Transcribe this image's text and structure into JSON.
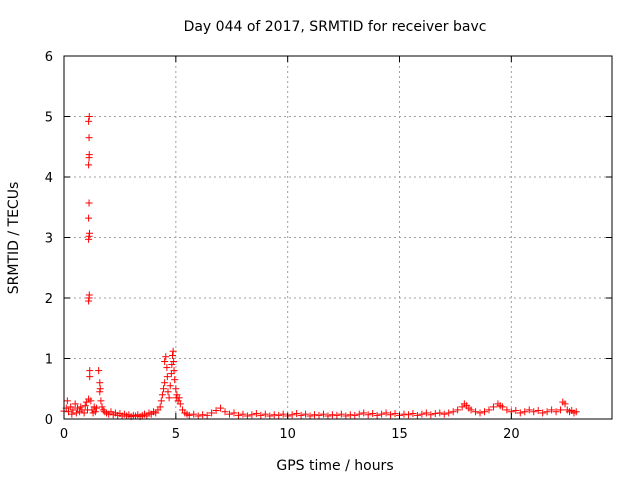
{
  "chart_data": {
    "type": "scatter",
    "title": "Day 044 of 2017, SRMTID for receiver bavc",
    "xlabel": "GPS time / hours",
    "ylabel": "SRMTID / TECUs",
    "xlim": [
      0,
      24.5
    ],
    "ylim": [
      0,
      6
    ],
    "xticks": [
      0,
      5,
      10,
      15,
      20
    ],
    "yticks": [
      0,
      1,
      2,
      3,
      4,
      5,
      6
    ],
    "grid": true,
    "marker": "+",
    "color": "#ff0000",
    "series": [
      {
        "name": "SRMTID",
        "points": [
          [
            0.0,
            0.13
          ],
          [
            0.1,
            0.18
          ],
          [
            0.15,
            0.3
          ],
          [
            0.2,
            0.12
          ],
          [
            0.3,
            0.2
          ],
          [
            0.35,
            0.08
          ],
          [
            0.4,
            0.15
          ],
          [
            0.5,
            0.25
          ],
          [
            0.55,
            0.1
          ],
          [
            0.6,
            0.18
          ],
          [
            0.7,
            0.12
          ],
          [
            0.75,
            0.2
          ],
          [
            0.8,
            0.15
          ],
          [
            0.9,
            0.1
          ],
          [
            0.95,
            0.22
          ],
          [
            1.0,
            0.28
          ],
          [
            1.05,
            0.15
          ],
          [
            1.1,
            0.33
          ],
          [
            1.1,
            1.95
          ],
          [
            1.12,
            2.0
          ],
          [
            1.13,
            2.05
          ],
          [
            1.1,
            2.97
          ],
          [
            1.12,
            3.02
          ],
          [
            1.14,
            3.07
          ],
          [
            1.1,
            3.32
          ],
          [
            1.12,
            3.57
          ],
          [
            1.1,
            4.2
          ],
          [
            1.12,
            4.32
          ],
          [
            1.13,
            4.37
          ],
          [
            1.12,
            4.65
          ],
          [
            1.1,
            4.92
          ],
          [
            1.13,
            5.0
          ],
          [
            1.15,
            0.8
          ],
          [
            1.15,
            0.7
          ],
          [
            1.2,
            0.3
          ],
          [
            1.25,
            0.15
          ],
          [
            1.3,
            0.1
          ],
          [
            1.35,
            0.2
          ],
          [
            1.4,
            0.12
          ],
          [
            1.45,
            0.18
          ],
          [
            1.55,
            0.8
          ],
          [
            1.6,
            0.6
          ],
          [
            1.62,
            0.5
          ],
          [
            1.6,
            0.45
          ],
          [
            1.65,
            0.3
          ],
          [
            1.7,
            0.2
          ],
          [
            1.75,
            0.15
          ],
          [
            1.8,
            0.12
          ],
          [
            1.9,
            0.1
          ],
          [
            2.0,
            0.08
          ],
          [
            2.1,
            0.12
          ],
          [
            2.2,
            0.07
          ],
          [
            2.3,
            0.1
          ],
          [
            2.4,
            0.06
          ],
          [
            2.5,
            0.09
          ],
          [
            2.6,
            0.05
          ],
          [
            2.7,
            0.08
          ],
          [
            2.8,
            0.05
          ],
          [
            2.9,
            0.07
          ],
          [
            3.0,
            0.04
          ],
          [
            3.1,
            0.06
          ],
          [
            3.2,
            0.05
          ],
          [
            3.3,
            0.07
          ],
          [
            3.4,
            0.04
          ],
          [
            3.5,
            0.06
          ],
          [
            3.6,
            0.08
          ],
          [
            3.7,
            0.05
          ],
          [
            3.8,
            0.1
          ],
          [
            3.9,
            0.08
          ],
          [
            4.0,
            0.12
          ],
          [
            4.1,
            0.1
          ],
          [
            4.2,
            0.15
          ],
          [
            4.3,
            0.2
          ],
          [
            4.35,
            0.3
          ],
          [
            4.4,
            0.4
          ],
          [
            4.45,
            0.5
          ],
          [
            4.5,
            0.6
          ],
          [
            4.5,
            0.95
          ],
          [
            4.55,
            1.03
          ],
          [
            4.6,
            0.85
          ],
          [
            4.62,
            0.7
          ],
          [
            4.65,
            0.45
          ],
          [
            4.7,
            0.35
          ],
          [
            4.75,
            0.55
          ],
          [
            4.8,
            0.75
          ],
          [
            4.82,
            0.9
          ],
          [
            4.85,
            1.05
          ],
          [
            4.88,
            1.12
          ],
          [
            4.9,
            0.95
          ],
          [
            4.92,
            0.8
          ],
          [
            4.95,
            0.65
          ],
          [
            5.0,
            0.5
          ],
          [
            5.02,
            0.35
          ],
          [
            5.05,
            0.4
          ],
          [
            5.1,
            0.3
          ],
          [
            5.15,
            0.35
          ],
          [
            5.2,
            0.25
          ],
          [
            5.3,
            0.15
          ],
          [
            5.4,
            0.1
          ],
          [
            5.5,
            0.08
          ],
          [
            5.6,
            0.06
          ],
          [
            5.8,
            0.08
          ],
          [
            6.0,
            0.05
          ],
          [
            6.2,
            0.07
          ],
          [
            6.4,
            0.06
          ],
          [
            6.6,
            0.1
          ],
          [
            6.8,
            0.14
          ],
          [
            7.0,
            0.18
          ],
          [
            7.2,
            0.12
          ],
          [
            7.4,
            0.08
          ],
          [
            7.6,
            0.1
          ],
          [
            7.8,
            0.06
          ],
          [
            8.0,
            0.08
          ],
          [
            8.2,
            0.05
          ],
          [
            8.4,
            0.07
          ],
          [
            8.6,
            0.09
          ],
          [
            8.8,
            0.06
          ],
          [
            9.0,
            0.08
          ],
          [
            9.2,
            0.05
          ],
          [
            9.4,
            0.07
          ],
          [
            9.6,
            0.06
          ],
          [
            9.8,
            0.08
          ],
          [
            10.0,
            0.05
          ],
          [
            10.2,
            0.07
          ],
          [
            10.4,
            0.09
          ],
          [
            10.6,
            0.06
          ],
          [
            10.8,
            0.08
          ],
          [
            11.0,
            0.05
          ],
          [
            11.2,
            0.07
          ],
          [
            11.4,
            0.06
          ],
          [
            11.6,
            0.08
          ],
          [
            11.8,
            0.05
          ],
          [
            12.0,
            0.07
          ],
          [
            12.2,
            0.06
          ],
          [
            12.4,
            0.08
          ],
          [
            12.6,
            0.05
          ],
          [
            12.8,
            0.07
          ],
          [
            13.0,
            0.06
          ],
          [
            13.2,
            0.08
          ],
          [
            13.4,
            0.1
          ],
          [
            13.6,
            0.07
          ],
          [
            13.8,
            0.09
          ],
          [
            14.0,
            0.06
          ],
          [
            14.2,
            0.08
          ],
          [
            14.4,
            0.1
          ],
          [
            14.6,
            0.07
          ],
          [
            14.8,
            0.09
          ],
          [
            15.0,
            0.06
          ],
          [
            15.2,
            0.08
          ],
          [
            15.4,
            0.07
          ],
          [
            15.6,
            0.09
          ],
          [
            15.8,
            0.06
          ],
          [
            16.0,
            0.08
          ],
          [
            16.2,
            0.1
          ],
          [
            16.4,
            0.07
          ],
          [
            16.6,
            0.09
          ],
          [
            16.8,
            0.1
          ],
          [
            17.0,
            0.08
          ],
          [
            17.2,
            0.1
          ],
          [
            17.4,
            0.12
          ],
          [
            17.6,
            0.15
          ],
          [
            17.8,
            0.2
          ],
          [
            17.9,
            0.25
          ],
          [
            18.0,
            0.22
          ],
          [
            18.1,
            0.18
          ],
          [
            18.2,
            0.15
          ],
          [
            18.4,
            0.12
          ],
          [
            18.6,
            0.1
          ],
          [
            18.8,
            0.12
          ],
          [
            19.0,
            0.15
          ],
          [
            19.2,
            0.2
          ],
          [
            19.4,
            0.25
          ],
          [
            19.5,
            0.22
          ],
          [
            19.6,
            0.2
          ],
          [
            19.8,
            0.15
          ],
          [
            20.0,
            0.12
          ],
          [
            20.2,
            0.14
          ],
          [
            20.4,
            0.1
          ],
          [
            20.6,
            0.12
          ],
          [
            20.8,
            0.15
          ],
          [
            21.0,
            0.12
          ],
          [
            21.2,
            0.14
          ],
          [
            21.4,
            0.1
          ],
          [
            21.6,
            0.12
          ],
          [
            21.8,
            0.15
          ],
          [
            22.0,
            0.12
          ],
          [
            22.2,
            0.15
          ],
          [
            22.3,
            0.28
          ],
          [
            22.4,
            0.25
          ],
          [
            22.5,
            0.15
          ],
          [
            22.6,
            0.12
          ],
          [
            22.7,
            0.14
          ],
          [
            22.8,
            0.1
          ],
          [
            22.9,
            0.12
          ]
        ]
      }
    ]
  }
}
